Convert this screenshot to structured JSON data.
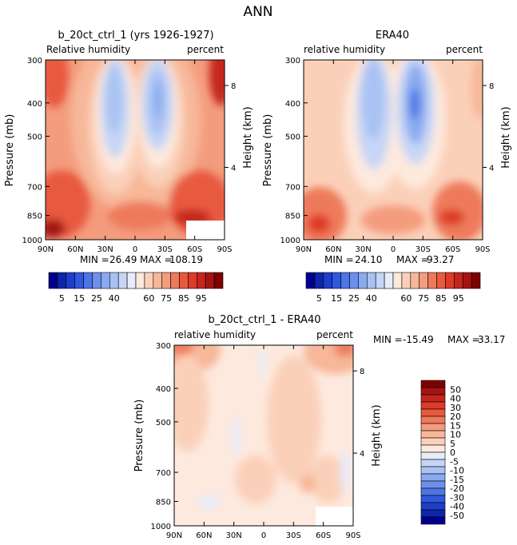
{
  "main_title": "ANN",
  "colors": {
    "positive": [
      "#fde9de",
      "#fbd0b9",
      "#f7b799",
      "#f49c7e",
      "#ee7a5b",
      "#e85a3f",
      "#dd3b27",
      "#c5251c",
      "#a51414",
      "#7f0000"
    ],
    "negative": [
      "#e6ecfb",
      "#c6d6f6",
      "#a9c2f3",
      "#8aaaf0",
      "#6d90ec",
      "#4d75e6",
      "#3058de",
      "#1e3ec9",
      "#0d25a8",
      "#00008e"
    ]
  },
  "chart_data": [
    {
      "id": "model",
      "type": "heatmap",
      "title": "b_20ct_ctrl_1 (yrs 1926-1927)",
      "left_label": "Relative humidity",
      "right_label": "percent",
      "xlabel": "",
      "ylabel": "Pressure (mb)",
      "y2label": "Height (km)",
      "x_ticks": [
        "90N",
        "60N",
        "30N",
        "0",
        "30S",
        "60S",
        "90S"
      ],
      "y_ticks": [
        "300",
        "400",
        "500",
        "700",
        "850",
        "1000"
      ],
      "y2_ticks": [
        "8",
        "4"
      ],
      "ylim": [
        1000,
        300
      ],
      "min_label": "MIN =",
      "min_value": "26.49",
      "max_label": "MAX =",
      "max_value": "108.19"
    },
    {
      "id": "obs",
      "type": "heatmap",
      "title": "ERA40",
      "left_label": "relative humidity",
      "right_label": "percent",
      "xlabel": "",
      "ylabel": "Pressure (mb)",
      "y2label": "Height (km)",
      "x_ticks": [
        "90N",
        "60N",
        "30N",
        "0",
        "30S",
        "60S",
        "90S"
      ],
      "y_ticks": [
        "300",
        "400",
        "500",
        "700",
        "850",
        "1000"
      ],
      "y2_ticks": [
        "8",
        "4"
      ],
      "ylim": [
        1000,
        300
      ],
      "min_label": "MIN =",
      "min_value": "24.10",
      "max_label": "MAX =",
      "max_value": "93.27"
    },
    {
      "id": "diff",
      "type": "heatmap",
      "title": "b_20ct_ctrl_1 - ERA40",
      "left_label": "relative humidity",
      "right_label": "percent",
      "xlabel": "",
      "ylabel": "Pressure (mb)",
      "y2label": "Height (km)",
      "x_ticks": [
        "90N",
        "60N",
        "30N",
        "0",
        "30S",
        "60S",
        "90S"
      ],
      "y_ticks": [
        "300",
        "400",
        "500",
        "700",
        "850",
        "1000"
      ],
      "y2_ticks": [
        "8",
        "4"
      ],
      "ylim": [
        1000,
        300
      ],
      "min_label": "MIN =",
      "min_value": "-15.49",
      "max_label": "MAX =",
      "max_value": "33.17"
    }
  ],
  "colorbar_abs": {
    "labels": [
      "5",
      "15",
      "25",
      "40",
      "60",
      "75",
      "85",
      "95"
    ]
  },
  "colorbar_diff": {
    "labels": [
      "50",
      "40",
      "30",
      "20",
      "15",
      "10",
      "5",
      "0",
      "-5",
      "-10",
      "-15",
      "-20",
      "-30",
      "-40",
      "-50"
    ]
  }
}
